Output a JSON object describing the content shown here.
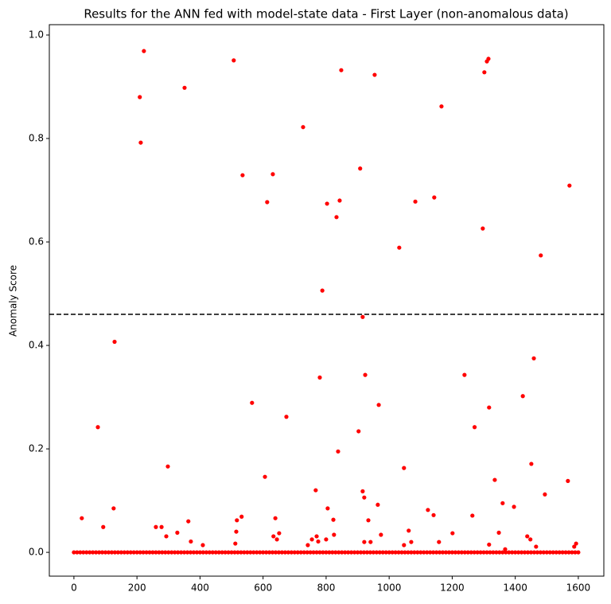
{
  "chart_data": {
    "type": "scatter",
    "title": "Results for the ANN fed with model-state data - First Layer (non-anomalous data)",
    "y_label": "Anomaly Score",
    "color": "#ff0000",
    "threshold": 0.46,
    "xlim": [
      -78,
      1681
    ],
    "ylim": [
      -0.046,
      1.02
    ],
    "xticks": [
      0,
      200,
      400,
      600,
      800,
      1000,
      1200,
      1400,
      1600
    ],
    "yticks": [
      {
        "value": 0,
        "label": "0.0"
      },
      0.2,
      0.4,
      0.6,
      0.8,
      {
        "value": 1,
        "label": "1.0"
      }
    ],
    "x": [
      0,
      10,
      20,
      30,
      40,
      50,
      60,
      70,
      80,
      90,
      100,
      110,
      120,
      130,
      140,
      150,
      160,
      170,
      180,
      190,
      200,
      210,
      220,
      230,
      240,
      250,
      260,
      270,
      280,
      290,
      300,
      310,
      320,
      330,
      340,
      350,
      360,
      370,
      380,
      390,
      400,
      410,
      420,
      430,
      440,
      450,
      460,
      470,
      480,
      490,
      500,
      510,
      520,
      530,
      540,
      550,
      560,
      570,
      580,
      590,
      600,
      610,
      620,
      630,
      640,
      650,
      660,
      670,
      680,
      690,
      700,
      710,
      720,
      730,
      740,
      750,
      760,
      770,
      780,
      790,
      800,
      810,
      820,
      830,
      840,
      850,
      860,
      870,
      880,
      890,
      900,
      910,
      920,
      930,
      940,
      950,
      960,
      970,
      980,
      990,
      1000,
      1010,
      1020,
      1030,
      1040,
      1050,
      1060,
      1070,
      1080,
      1090,
      1100,
      1110,
      1120,
      1130,
      1140,
      1150,
      1160,
      1170,
      1180,
      1190,
      1200,
      1210,
      1220,
      1230,
      1240,
      1250,
      1260,
      1270,
      1280,
      1290,
      1300,
      1310,
      1320,
      1330,
      1340,
      1350,
      1360,
      1370,
      1380,
      1390,
      1400,
      1410,
      1420,
      1430,
      1440,
      1450,
      1460,
      1470,
      1480,
      1490,
      1500,
      1510,
      1520,
      1530,
      1540,
      1550,
      1560,
      1570,
      1580,
      1590,
      1600,
      25,
      76,
      93,
      129,
      126,
      209,
      212,
      222,
      260,
      278,
      298,
      293,
      328,
      351,
      363,
      371,
      409,
      507,
      515,
      517,
      512,
      535,
      532,
      565,
      606,
      613,
      631,
      639,
      633,
      644,
      651,
      674,
      727,
      742,
      755,
      767,
      770,
      775,
      780,
      788,
      800,
      803,
      805,
      823,
      825,
      833,
      838,
      843,
      848,
      903,
      908,
      916,
      921,
      916,
      924,
      934,
      941,
      954,
      964,
      967,
      974,
      921,
      1047,
      1047,
      1032,
      1062,
      1070,
      1083,
      1123,
      1141,
      1143,
      1158,
      1166,
      1201,
      1239,
      1264,
      1271,
      1297,
      1302,
      1310,
      1315,
      1317,
      1317,
      1335,
      1348,
      1360,
      1368,
      1396,
      1424,
      1438,
      1448,
      1451,
      1459,
      1466,
      1494,
      1481,
      1567,
      1572,
      1593,
      1587
    ],
    "values": [
      0,
      0,
      0,
      0,
      0,
      0,
      0,
      0,
      0,
      0,
      0,
      0,
      0,
      0,
      0,
      0,
      0,
      0,
      0,
      0,
      0,
      0,
      0,
      0,
      0,
      0,
      0,
      0,
      0,
      0,
      0,
      0,
      0,
      0,
      0,
      0,
      0,
      0,
      0,
      0,
      0,
      0,
      0,
      0,
      0,
      0,
      0,
      0,
      0,
      0,
      0,
      0,
      0,
      0,
      0,
      0,
      0,
      0,
      0,
      0,
      0,
      0,
      0,
      0,
      0,
      0,
      0,
      0,
      0,
      0,
      0,
      0,
      0,
      0,
      0,
      0,
      0,
      0,
      0,
      0,
      0,
      0,
      0,
      0,
      0,
      0,
      0,
      0,
      0,
      0,
      0,
      0,
      0,
      0,
      0,
      0,
      0,
      0,
      0,
      0,
      0,
      0,
      0,
      0,
      0,
      0,
      0,
      0,
      0,
      0,
      0,
      0,
      0,
      0,
      0,
      0,
      0,
      0,
      0,
      0,
      0,
      0,
      0,
      0,
      0,
      0,
      0,
      0,
      0,
      0,
      0,
      0,
      0,
      0,
      0,
      0,
      0,
      0,
      0,
      0,
      0,
      0,
      0,
      0,
      0,
      0,
      0,
      0,
      0,
      0,
      0,
      0,
      0,
      0,
      0,
      0,
      0,
      0,
      0,
      0,
      0,
      0.066,
      0.242,
      0.049,
      0.407,
      0.085,
      0.88,
      0.792,
      0.969,
      0.049,
      0.049,
      0.166,
      0.031,
      0.038,
      0.898,
      0.06,
      0.021,
      0.014,
      0.951,
      0.04,
      0.062,
      0.017,
      0.729,
      0.069,
      0.289,
      0.146,
      0.677,
      0.731,
      0.066,
      0.031,
      0.025,
      0.037,
      0.262,
      0.822,
      0.014,
      0.025,
      0.12,
      0.031,
      0.021,
      0.338,
      0.506,
      0.025,
      0.674,
      0.085,
      0.063,
      0.034,
      0.648,
      0.195,
      0.68,
      0.932,
      0.234,
      0.742,
      0.118,
      0.106,
      0.455,
      0.343,
      0.062,
      0.02,
      0.923,
      0.092,
      0.285,
      0.034,
      0.02,
      0.163,
      0.014,
      0.589,
      0.042,
      0.02,
      0.678,
      0.082,
      0.072,
      0.686,
      0.02,
      0.862,
      0.037,
      0.343,
      0.071,
      0.242,
      0.626,
      0.928,
      0.949,
      0.954,
      0.28,
      0.015,
      0.14,
      0.038,
      0.095,
      0.006,
      0.088,
      0.302,
      0.031,
      0.025,
      0.171,
      0.375,
      0.011,
      0.112,
      0.574,
      0.138,
      0.709,
      0.017,
      0.011
    ]
  }
}
